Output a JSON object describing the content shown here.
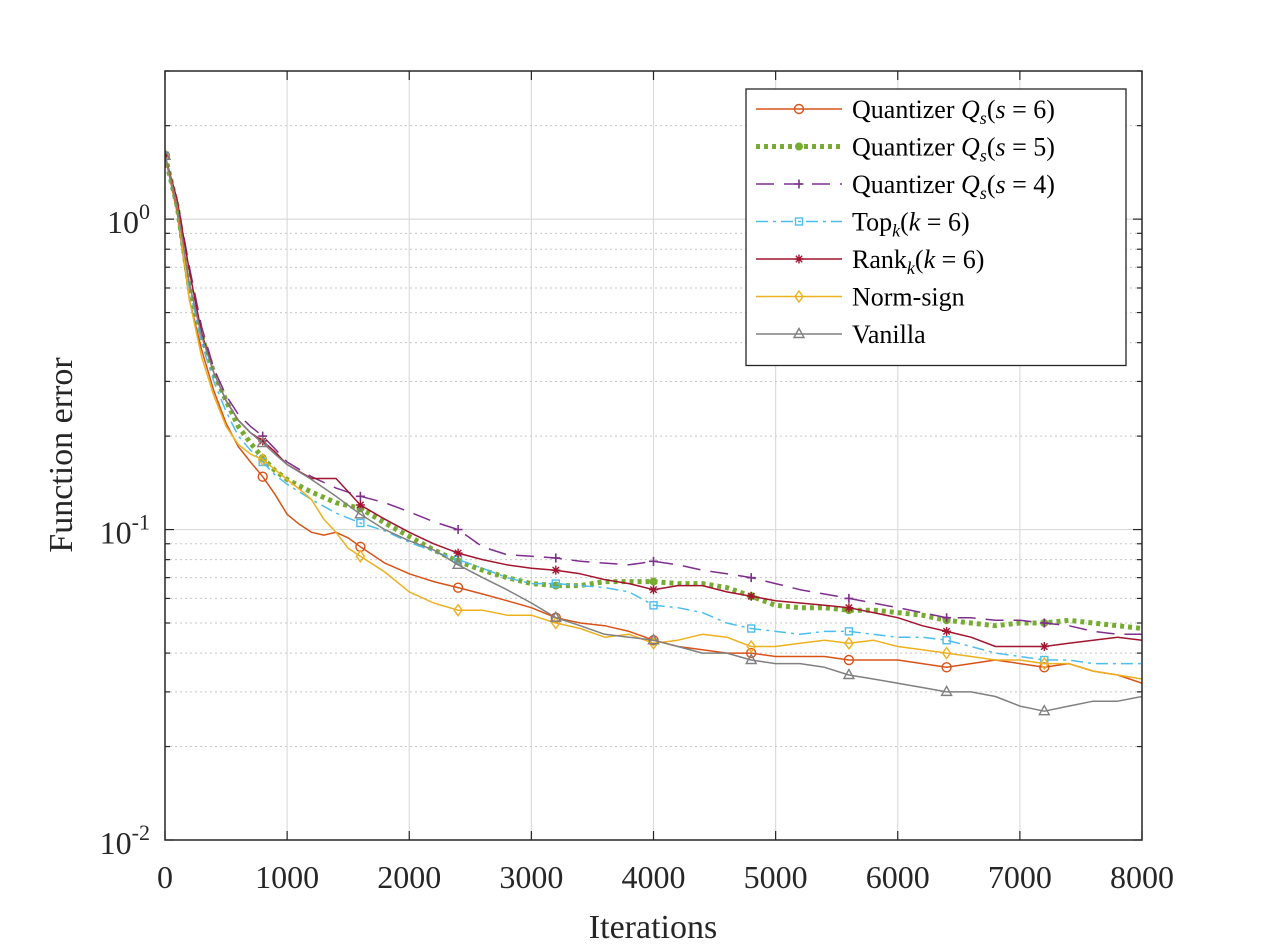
{
  "chart_data": {
    "type": "line",
    "title": "",
    "xlabel": "Iterations",
    "ylabel": "Function error",
    "xscale": "linear",
    "yscale": "log",
    "xlim": [
      0,
      8000
    ],
    "ylim": [
      0.01,
      3
    ],
    "grid": true,
    "minor_grid_y": true,
    "legend_position": "top-right",
    "x_ticks": [
      0,
      1000,
      2000,
      3000,
      4000,
      5000,
      6000,
      7000,
      8000
    ],
    "x_tick_labels": [
      "0",
      "1000",
      "2000",
      "3000",
      "4000",
      "5000",
      "6000",
      "7000",
      "8000"
    ],
    "y_ticks": [
      0.01,
      0.1,
      1
    ],
    "y_tick_labels": [
      {
        "base": "10",
        "exp": "-2"
      },
      {
        "base": "10",
        "exp": "-1"
      },
      {
        "base": "10",
        "exp": "0"
      }
    ],
    "series": [
      {
        "name": "Quantizer Qs(s = 6)",
        "legend": {
          "pre": "Quantizer ",
          "sym": "Q",
          "sub": "s",
          "post": "(",
          "var": "s",
          "eq": " = 6)"
        },
        "color": "#D95319",
        "dash": "",
        "width": 1.5,
        "marker": "circle",
        "x": [
          0,
          100,
          200,
          300,
          400,
          500,
          600,
          700,
          800,
          900,
          1000,
          1100,
          1200,
          1300,
          1400,
          1500,
          1600,
          1800,
          2000,
          2200,
          2400,
          2600,
          2800,
          3000,
          3200,
          3400,
          3600,
          3800,
          4000,
          4200,
          4400,
          4600,
          4800,
          5000,
          5200,
          5400,
          5600,
          5800,
          6000,
          6200,
          6400,
          6600,
          6800,
          7000,
          7200,
          7400,
          7600,
          7800,
          8000
        ],
        "y": [
          1.6,
          1.05,
          0.55,
          0.38,
          0.28,
          0.22,
          0.185,
          0.165,
          0.148,
          0.13,
          0.112,
          0.104,
          0.098,
          0.096,
          0.098,
          0.094,
          0.088,
          0.078,
          0.072,
          0.068,
          0.065,
          0.062,
          0.059,
          0.056,
          0.052,
          0.05,
          0.049,
          0.047,
          0.044,
          0.042,
          0.041,
          0.04,
          0.04,
          0.039,
          0.039,
          0.039,
          0.038,
          0.038,
          0.038,
          0.037,
          0.036,
          0.037,
          0.038,
          0.037,
          0.036,
          0.037,
          0.035,
          0.034,
          0.032
        ],
        "markers_at": [
          0,
          800,
          1600,
          2400,
          3200,
          4000,
          4800,
          5600,
          6400,
          7200
        ]
      },
      {
        "name": "Quantizer Qs(s = 5)",
        "legend": {
          "pre": "Quantizer ",
          "sym": "Q",
          "sub": "s",
          "post": "(",
          "var": "s",
          "eq": " = 5)"
        },
        "color": "#77AC30",
        "dash": "4,4",
        "width": 5,
        "marker": "dot",
        "x": [
          0,
          100,
          200,
          300,
          400,
          500,
          600,
          700,
          800,
          900,
          1000,
          1200,
          1400,
          1600,
          1800,
          2000,
          2200,
          2400,
          2600,
          2800,
          3000,
          3200,
          3400,
          3600,
          3800,
          4000,
          4200,
          4400,
          4600,
          4800,
          5000,
          5200,
          5400,
          5600,
          5800,
          6000,
          6200,
          6400,
          6600,
          6800,
          7000,
          7200,
          7400,
          7600,
          7800,
          8000
        ],
        "y": [
          1.6,
          1.1,
          0.6,
          0.42,
          0.32,
          0.26,
          0.215,
          0.19,
          0.17,
          0.155,
          0.145,
          0.132,
          0.122,
          0.117,
          0.105,
          0.095,
          0.086,
          0.079,
          0.074,
          0.07,
          0.067,
          0.066,
          0.066,
          0.068,
          0.068,
          0.068,
          0.067,
          0.067,
          0.065,
          0.061,
          0.057,
          0.056,
          0.056,
          0.055,
          0.055,
          0.054,
          0.053,
          0.051,
          0.05,
          0.049,
          0.05,
          0.05,
          0.051,
          0.05,
          0.049,
          0.048
        ],
        "markers_at": [
          0,
          800,
          1600,
          2400,
          3200,
          4000,
          4800,
          5600,
          6400,
          7200
        ]
      },
      {
        "name": "Quantizer Qs(s = 4)",
        "legend": {
          "pre": "Quantizer ",
          "sym": "Q",
          "sub": "s",
          "post": "(",
          "var": "s",
          "eq": " = 4)"
        },
        "color": "#7E2F8E",
        "dash": "18,10",
        "width": 1.5,
        "marker": "plus",
        "x": [
          0,
          100,
          200,
          300,
          400,
          500,
          600,
          700,
          800,
          900,
          1000,
          1200,
          1400,
          1600,
          1800,
          2000,
          2200,
          2400,
          2600,
          2800,
          3000,
          3200,
          3400,
          3600,
          3800,
          4000,
          4200,
          4400,
          4600,
          4800,
          5000,
          5200,
          5400,
          5600,
          5800,
          6000,
          6200,
          6400,
          6600,
          6800,
          7000,
          7200,
          7400,
          7600,
          7800,
          8000
        ],
        "y": [
          1.6,
          1.15,
          0.7,
          0.45,
          0.33,
          0.27,
          0.235,
          0.215,
          0.2,
          0.182,
          0.165,
          0.148,
          0.136,
          0.128,
          0.122,
          0.114,
          0.106,
          0.1,
          0.088,
          0.083,
          0.082,
          0.081,
          0.079,
          0.078,
          0.077,
          0.079,
          0.077,
          0.074,
          0.072,
          0.07,
          0.067,
          0.064,
          0.062,
          0.06,
          0.058,
          0.056,
          0.054,
          0.052,
          0.052,
          0.051,
          0.051,
          0.05,
          0.049,
          0.047,
          0.046,
          0.046
        ],
        "markers_at": [
          0,
          800,
          1600,
          2400,
          3200,
          4000,
          4800,
          5600,
          6400,
          7200
        ]
      },
      {
        "name": "Topk(k = 6)",
        "legend": {
          "pre": "Top",
          "sym": "",
          "sub": "k",
          "post": "(",
          "var": "k",
          "eq": " = 6)"
        },
        "color": "#4DBEEE",
        "dash": "12,5,3,5",
        "width": 1.5,
        "marker": "square",
        "x": [
          0,
          100,
          200,
          300,
          400,
          500,
          600,
          700,
          800,
          900,
          1000,
          1200,
          1400,
          1600,
          1800,
          2000,
          2200,
          2400,
          2600,
          2800,
          3000,
          3200,
          3400,
          3600,
          3800,
          4000,
          4200,
          4400,
          4600,
          4800,
          5000,
          5200,
          5400,
          5600,
          5800,
          6000,
          6200,
          6400,
          6600,
          6800,
          7000,
          7200,
          7400,
          7600,
          7800,
          8000
        ],
        "y": [
          1.6,
          1.1,
          0.6,
          0.4,
          0.3,
          0.24,
          0.2,
          0.18,
          0.165,
          0.15,
          0.14,
          0.125,
          0.113,
          0.105,
          0.099,
          0.091,
          0.085,
          0.08,
          0.075,
          0.07,
          0.067,
          0.067,
          0.066,
          0.065,
          0.063,
          0.057,
          0.056,
          0.054,
          0.05,
          0.048,
          0.047,
          0.046,
          0.047,
          0.047,
          0.046,
          0.045,
          0.045,
          0.044,
          0.042,
          0.04,
          0.039,
          0.038,
          0.038,
          0.037,
          0.037,
          0.037
        ],
        "markers_at": [
          0,
          800,
          1600,
          2400,
          3200,
          4000,
          4800,
          5600,
          6400,
          7200
        ]
      },
      {
        "name": "Rankk(k = 6)",
        "legend": {
          "pre": "Rank",
          "sym": "",
          "sub": "k",
          "post": "(",
          "var": "k",
          "eq": " = 6)"
        },
        "color": "#A2142F",
        "dash": "",
        "width": 1.5,
        "marker": "star",
        "x": [
          0,
          100,
          200,
          300,
          400,
          500,
          600,
          700,
          800,
          900,
          1000,
          1200,
          1400,
          1600,
          1800,
          2000,
          2200,
          2400,
          2600,
          2800,
          3000,
          3200,
          3400,
          3600,
          3800,
          4000,
          4200,
          4400,
          4600,
          4800,
          5000,
          5200,
          5400,
          5600,
          5800,
          6000,
          6200,
          6400,
          6600,
          6800,
          7000,
          7200,
          7400,
          7600,
          7800,
          8000
        ],
        "y": [
          1.6,
          1.15,
          0.68,
          0.43,
          0.32,
          0.26,
          0.225,
          0.205,
          0.193,
          0.178,
          0.162,
          0.146,
          0.146,
          0.12,
          0.108,
          0.098,
          0.09,
          0.084,
          0.08,
          0.077,
          0.075,
          0.074,
          0.072,
          0.069,
          0.067,
          0.064,
          0.066,
          0.066,
          0.063,
          0.061,
          0.059,
          0.058,
          0.057,
          0.056,
          0.054,
          0.052,
          0.049,
          0.047,
          0.045,
          0.042,
          0.042,
          0.042,
          0.043,
          0.044,
          0.045,
          0.044
        ],
        "markers_at": [
          0,
          800,
          1600,
          2400,
          3200,
          4000,
          4800,
          5600,
          6400,
          7200
        ]
      },
      {
        "name": "Norm-sign",
        "legend": {
          "pre": "Norm-sign",
          "sym": "",
          "sub": "",
          "post": "",
          "var": "",
          "eq": ""
        },
        "color": "#EDB120",
        "dash": "",
        "width": 1.5,
        "marker": "diamond",
        "x": [
          0,
          100,
          200,
          300,
          400,
          500,
          600,
          700,
          800,
          900,
          1000,
          1100,
          1200,
          1300,
          1400,
          1500,
          1600,
          1800,
          2000,
          2200,
          2400,
          2600,
          2800,
          3000,
          3200,
          3400,
          3600,
          3800,
          4000,
          4200,
          4400,
          4600,
          4800,
          5000,
          5200,
          5400,
          5600,
          5800,
          6000,
          6200,
          6400,
          6600,
          6800,
          7000,
          7200,
          7400,
          7600,
          7800,
          8000
        ],
        "y": [
          1.6,
          1.1,
          0.55,
          0.36,
          0.27,
          0.215,
          0.188,
          0.175,
          0.168,
          0.156,
          0.145,
          0.135,
          0.125,
          0.108,
          0.098,
          0.087,
          0.082,
          0.073,
          0.063,
          0.058,
          0.055,
          0.055,
          0.053,
          0.053,
          0.05,
          0.048,
          0.045,
          0.046,
          0.043,
          0.044,
          0.046,
          0.045,
          0.042,
          0.042,
          0.043,
          0.044,
          0.043,
          0.044,
          0.042,
          0.041,
          0.04,
          0.039,
          0.038,
          0.038,
          0.037,
          0.037,
          0.035,
          0.034,
          0.033
        ],
        "markers_at": [
          0,
          800,
          1600,
          2400,
          3200,
          4000,
          4800,
          5600,
          6400,
          7200
        ]
      },
      {
        "name": "Vanilla",
        "legend": {
          "pre": "Vanilla",
          "sym": "",
          "sub": "",
          "post": "",
          "var": "",
          "eq": ""
        },
        "color": "#808080",
        "dash": "",
        "width": 1.5,
        "marker": "triangle",
        "x": [
          0,
          100,
          200,
          300,
          400,
          500,
          600,
          700,
          800,
          900,
          1000,
          1200,
          1400,
          1600,
          1800,
          2000,
          2200,
          2400,
          2600,
          2800,
          3000,
          3200,
          3400,
          3600,
          3800,
          4000,
          4200,
          4400,
          4600,
          4800,
          5000,
          5200,
          5400,
          5600,
          5800,
          6000,
          6200,
          6400,
          6600,
          6800,
          7000,
          7200,
          7400,
          7600,
          7800,
          8000
        ],
        "y": [
          1.6,
          1.1,
          0.62,
          0.42,
          0.32,
          0.26,
          0.225,
          0.205,
          0.19,
          0.175,
          0.162,
          0.145,
          0.128,
          0.112,
          0.1,
          0.092,
          0.086,
          0.077,
          0.07,
          0.064,
          0.058,
          0.052,
          0.049,
          0.046,
          0.045,
          0.044,
          0.042,
          0.04,
          0.04,
          0.038,
          0.037,
          0.037,
          0.036,
          0.034,
          0.033,
          0.032,
          0.031,
          0.03,
          0.03,
          0.029,
          0.027,
          0.026,
          0.027,
          0.028,
          0.028,
          0.029
        ],
        "markers_at": [
          0,
          800,
          1600,
          2400,
          3200,
          4000,
          4800,
          5600,
          6400,
          7200
        ]
      }
    ]
  }
}
